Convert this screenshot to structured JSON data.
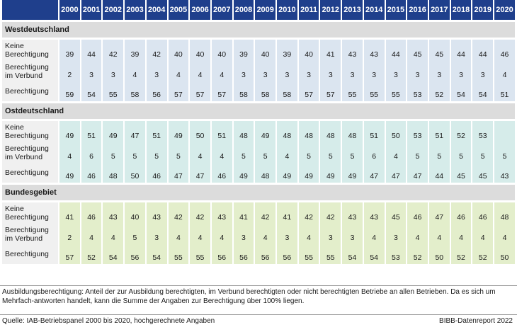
{
  "years": [
    "2000",
    "2001",
    "2002",
    "2003",
    "2004",
    "2005",
    "2006",
    "2007",
    "2008",
    "2009",
    "2010",
    "2011",
    "2012",
    "2013",
    "2014",
    "2015",
    "2016",
    "2017",
    "2018",
    "2019",
    "2020"
  ],
  "row_labels": {
    "keine": "Keine Berechtigung",
    "verbund": "Berechtigung im Verbund",
    "berechtigung": "Berechtigung"
  },
  "sections": [
    {
      "key": "west",
      "title": "Westdeutschland",
      "color": "#dbe5f0",
      "rows": [
        [
          "39",
          "44",
          "42",
          "39",
          "42",
          "40",
          "40",
          "40",
          "39",
          "40",
          "39",
          "40",
          "41",
          "43",
          "43",
          "44",
          "45",
          "45",
          "44",
          "44",
          "46"
        ],
        [
          "2",
          "3",
          "3",
          "4",
          "3",
          "4",
          "4",
          "4",
          "3",
          "3",
          "3",
          "3",
          "3",
          "3",
          "3",
          "3",
          "3",
          "3",
          "3",
          "3",
          "4"
        ],
        [
          "59",
          "54",
          "55",
          "58",
          "56",
          "57",
          "57",
          "57",
          "58",
          "58",
          "58",
          "57",
          "57",
          "55",
          "55",
          "55",
          "53",
          "52",
          "54",
          "54",
          "51"
        ]
      ]
    },
    {
      "key": "ost",
      "title": "Ostdeutschland",
      "color": "#d6ecea",
      "rows": [
        [
          "49",
          "51",
          "49",
          "47",
          "51",
          "49",
          "50",
          "51",
          "48",
          "49",
          "48",
          "48",
          "48",
          "48",
          "51",
          "50",
          "53",
          "51",
          "52",
          "53",
          ""
        ],
        [
          "4",
          "6",
          "5",
          "5",
          "5",
          "5",
          "4",
          "4",
          "5",
          "5",
          "4",
          "5",
          "5",
          "5",
          "6",
          "4",
          "5",
          "5",
          "5",
          "5",
          "5"
        ],
        [
          "49",
          "46",
          "48",
          "50",
          "46",
          "47",
          "47",
          "46",
          "49",
          "48",
          "49",
          "49",
          "49",
          "49",
          "47",
          "47",
          "47",
          "44",
          "45",
          "45",
          "43"
        ]
      ]
    },
    {
      "key": "bund",
      "title": "Bundesgebiet",
      "color": "#e3eecb",
      "rows": [
        [
          "41",
          "46",
          "43",
          "40",
          "43",
          "42",
          "42",
          "43",
          "41",
          "42",
          "41",
          "42",
          "42",
          "43",
          "43",
          "45",
          "46",
          "47",
          "46",
          "46",
          "48"
        ],
        [
          "2",
          "4",
          "4",
          "5",
          "3",
          "4",
          "4",
          "4",
          "3",
          "4",
          "3",
          "4",
          "3",
          "3",
          "4",
          "3",
          "4",
          "4",
          "4",
          "4",
          "4"
        ],
        [
          "57",
          "52",
          "54",
          "56",
          "54",
          "55",
          "55",
          "56",
          "56",
          "56",
          "56",
          "55",
          "55",
          "54",
          "54",
          "53",
          "52",
          "50",
          "52",
          "52",
          "50"
        ]
      ]
    }
  ],
  "note": "Ausbildungsberechtigung: Anteil der zur Ausbildung berechtigten, im Verbund berechtigten oder nicht berechtigten Betriebe an allen Betrieben. Da es sich um Mehrfach-antworten handelt, kann die Summe der Angaben zur Berechtigung über 100% liegen.",
  "source": "Quelle: IAB-Betriebspanel 2000 bis 2020, hochgerechnete Angaben",
  "brand": "BIBB-Datenreport 2022",
  "colors": {
    "header": "#1f3f8c",
    "section": "#dcdcdc",
    "label_bg": "#f0f0f0"
  }
}
